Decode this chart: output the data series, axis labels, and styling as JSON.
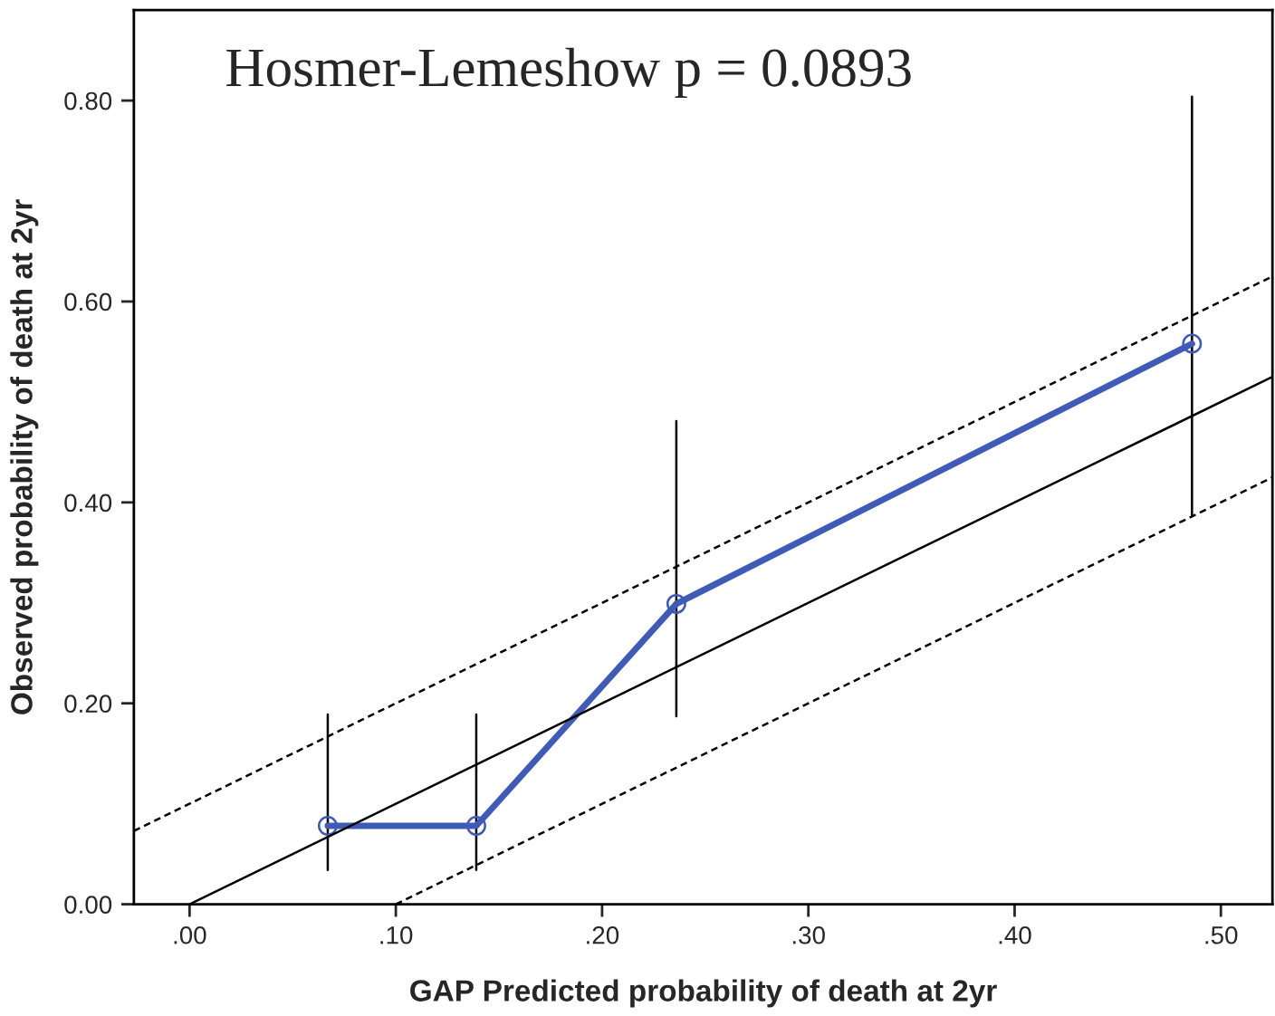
{
  "chart_data": {
    "type": "line",
    "xlabel": "GAP Predicted probability of death at 2yr",
    "ylabel": "Observed probability of death at 2yr",
    "annotations": [
      "Hosmer-Lemeshow p = 0.0893"
    ],
    "xlim": [
      -0.027,
      0.525
    ],
    "ylim": [
      0,
      0.89
    ],
    "xticks": [
      {
        "value": 0,
        "label": ".00"
      },
      {
        "value": 0.1,
        "label": ".10"
      },
      {
        "value": 0.2,
        "label": ".20"
      },
      {
        "value": 0.3,
        "label": ".30"
      },
      {
        "value": 0.4,
        "label": ".40"
      },
      {
        "value": 0.5,
        "label": ".50"
      }
    ],
    "yticks": [
      {
        "value": 0,
        "label": "0.00"
      },
      {
        "value": 0.2,
        "label": "0.20"
      },
      {
        "value": 0.4,
        "label": "0.40"
      },
      {
        "value": 0.6,
        "label": "0.60"
      },
      {
        "value": 0.8,
        "label": "0.80"
      }
    ],
    "grid": false,
    "legend": false,
    "series": [
      {
        "color": "#3f5bb5",
        "x": [
          0.067,
          0.139,
          0.236,
          0.486
        ],
        "values": [
          0.078,
          0.078,
          0.299,
          0.558
        ],
        "errors": [
          [
            0.034,
            0.189
          ],
          [
            0.034,
            0.189
          ],
          [
            0.187,
            0.481
          ],
          [
            0.387,
            0.804
          ]
        ],
        "marker": "circle",
        "line_style": "solid"
      },
      {
        "color": "#000000",
        "x": [
          0,
          0.525
        ],
        "values": [
          0,
          0.525
        ],
        "marker": "none",
        "line_style": "solid"
      },
      {
        "color": "#000000",
        "x": [
          -0.027,
          0.525
        ],
        "values": [
          0.073,
          0.625
        ],
        "marker": "none",
        "line_style": "dashed"
      },
      {
        "color": "#000000",
        "x": [
          0.1,
          0.525
        ],
        "values": [
          0,
          0.425
        ],
        "marker": "none",
        "line_style": "dashed"
      }
    ]
  }
}
